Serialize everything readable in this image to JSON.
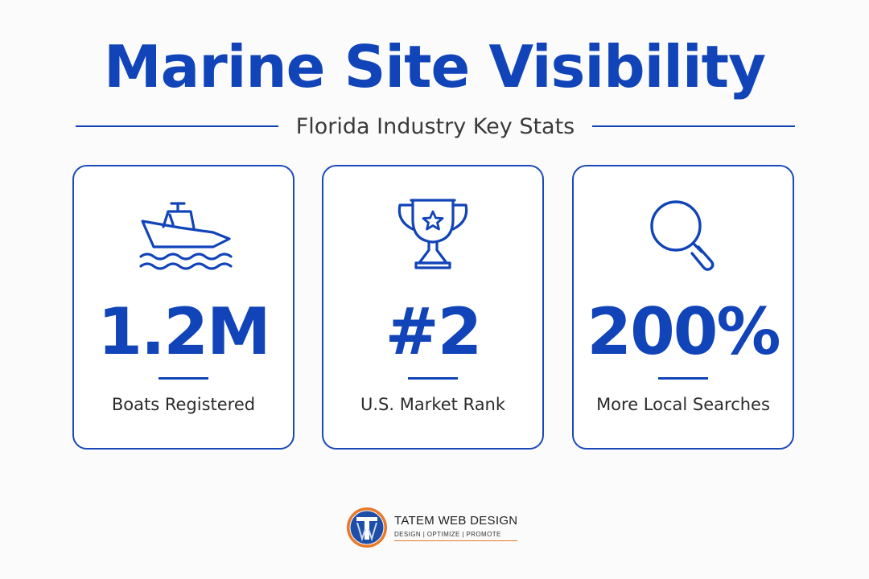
{
  "header": {
    "title": "Marine Site Visibility",
    "subtitle": "Florida Industry Key Stats"
  },
  "cards": [
    {
      "icon": "boat-icon",
      "value": "1.2M",
      "label": "Boats Registered"
    },
    {
      "icon": "trophy-icon",
      "value": "#2",
      "label": "U.S. Market Rank"
    },
    {
      "icon": "magnifier-icon",
      "value": "200%",
      "label": "More Local Searches"
    }
  ],
  "brand": {
    "name": "TATEM WEB DESIGN",
    "tagline": "DESIGN | OPTIMIZE | PROMOTE"
  },
  "colors": {
    "accent": "#1144b8",
    "background": "#fbfbfb",
    "text": "#2b2b2b",
    "brand_orange": "#e8782a"
  }
}
